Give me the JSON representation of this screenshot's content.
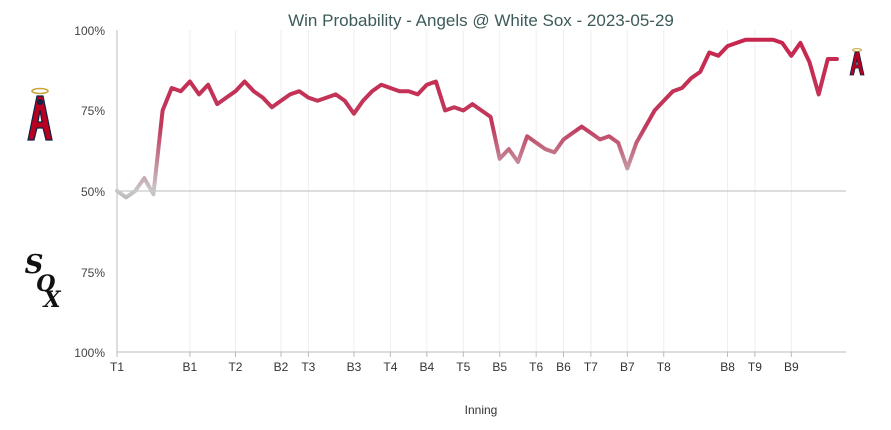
{
  "chart_data": {
    "type": "line",
    "title": "Win Probability - Angels @ White Sox - 2023-05-29",
    "xlabel": "Inning",
    "ylabel": "",
    "y_tick_labels": [
      "100%",
      "75%",
      "50%",
      "75%",
      "100%"
    ],
    "x_ticks": [
      "T1",
      "B1",
      "T2",
      "B2",
      "T3",
      "B3",
      "T4",
      "B4",
      "T5",
      "B5",
      "T6",
      "B6",
      "T7",
      "B7",
      "T8",
      "B8",
      "T9",
      "B9"
    ],
    "x_tick_positions": [
      0,
      8,
      13,
      18,
      21,
      26,
      30,
      34,
      38,
      42,
      46,
      49,
      52,
      56,
      60,
      67,
      70,
      74
    ],
    "x_range": [
      0,
      80
    ],
    "y_range": [
      0,
      100
    ],
    "ylim_meaning": "Angels win probability (%); above 50% = Angels (top), below = White Sox (bottom)",
    "grid": "vertical at inning ticks, horizontal midline at 50%",
    "series": [
      {
        "values": [
          50,
          48,
          50,
          54,
          49,
          75,
          82,
          81,
          84,
          80,
          83,
          77,
          79,
          81,
          84,
          81,
          79,
          76,
          78,
          80,
          81,
          79,
          78,
          79,
          80,
          78,
          74,
          78,
          81,
          83,
          82,
          81,
          81,
          80,
          83,
          84,
          75,
          76,
          75,
          77,
          75,
          73,
          60,
          63,
          59,
          67,
          65,
          63,
          62,
          66,
          68,
          70,
          68,
          66,
          67,
          65,
          57,
          65,
          70,
          75,
          78,
          81,
          82,
          85,
          87,
          93,
          92,
          95,
          96,
          97,
          97,
          97,
          97,
          96,
          92,
          96,
          90,
          80,
          91,
          91
        ]
      }
    ],
    "colors": {
      "angels": "#c8244c",
      "neutral": "#c8c8c8",
      "axis": "#bbbbbb",
      "grid": "#eeeeee"
    },
    "team_logos": {
      "top": "angels-logo",
      "bottom": "white-sox-logo",
      "end": "angels-logo"
    }
  }
}
